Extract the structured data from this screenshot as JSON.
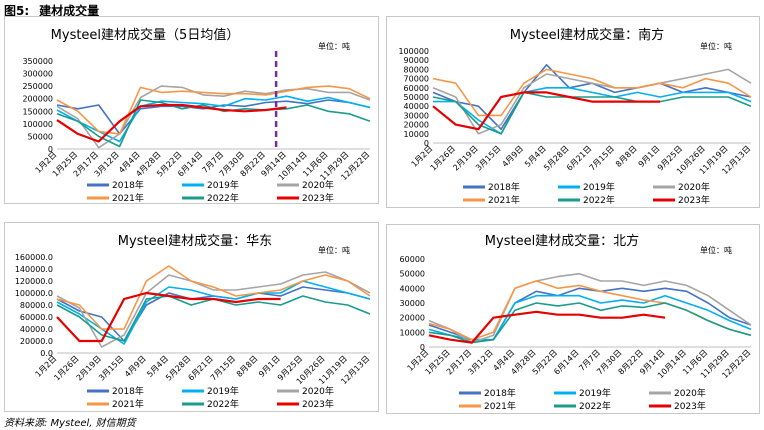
{
  "figure": {
    "number": "图5:",
    "title": "建材成交量"
  },
  "source": "资料来源: Mysteel, 财信期货",
  "series_colors": {
    "2018": "#4472c4",
    "2019": "#00b0f0",
    "2020": "#a5a5a5",
    "2021": "#f79646",
    "2022": "#1a9c8c",
    "2023": "#e60000"
  },
  "legend_order": [
    "2018",
    "2019",
    "2020",
    "2021",
    "2022",
    "2023"
  ],
  "legend_labels": [
    "2018年",
    "2019年",
    "2020年",
    "2021年",
    "2022年",
    "2023年"
  ],
  "chart_data": [
    {
      "type": "line",
      "title": "Mysteel建材成交量（5日均值）",
      "unit": "单位：吨",
      "ylim": [
        0,
        350000
      ],
      "yticks": [
        "0",
        "50000",
        "100000",
        "150000",
        "200000",
        "250000",
        "300000",
        "350000"
      ],
      "xticks": [
        "1月2日",
        "1月25日",
        "2月17日",
        "3月12日",
        "4月4日",
        "4月28日",
        "5月22日",
        "6月14日",
        "7月7日",
        "7月30日",
        "8月22日",
        "9月14日",
        "10月14日",
        "11月6日",
        "11月29日",
        "12月22日"
      ],
      "marker": {
        "x_index": 10.5,
        "style": "dashed",
        "color": "#7030a0"
      },
      "series": [
        {
          "name": "2018年",
          "values": [
            175000,
            160000,
            175000,
            60000,
            160000,
            170000,
            170000,
            160000,
            175000,
            170000,
            185000,
            190000,
            180000,
            195000,
            185000,
            165000
          ]
        },
        {
          "name": "2019年",
          "values": [
            155000,
            110000,
            70000,
            30000,
            170000,
            190000,
            185000,
            180000,
            170000,
            200000,
            195000,
            210000,
            190000,
            205000,
            185000,
            165000
          ]
        },
        {
          "name": "2020年",
          "values": [
            170000,
            120000,
            5000,
            60000,
            205000,
            250000,
            245000,
            215000,
            210000,
            230000,
            220000,
            235000,
            240000,
            225000,
            225000,
            195000
          ]
        },
        {
          "name": "2021年",
          "values": [
            195000,
            150000,
            70000,
            60000,
            245000,
            225000,
            230000,
            225000,
            220000,
            220000,
            215000,
            230000,
            245000,
            250000,
            240000,
            200000
          ]
        },
        {
          "name": "2022年",
          "values": [
            140000,
            110000,
            50000,
            10000,
            195000,
            185000,
            160000,
            175000,
            150000,
            160000,
            155000,
            160000,
            175000,
            150000,
            140000,
            110000
          ]
        },
        {
          "name": "2023年",
          "values": [
            115000,
            60000,
            30000,
            110000,
            170000,
            175000,
            175000,
            165000,
            155000,
            150000,
            155000,
            165000
          ]
        }
      ]
    },
    {
      "type": "line",
      "title": "Mysteel建材成交量：南方",
      "unit": "单位：吨",
      "ylim": [
        0,
        100000
      ],
      "yticks": [
        "0",
        "10000",
        "20000",
        "30000",
        "40000",
        "50000",
        "60000",
        "70000",
        "80000",
        "90000",
        "100000"
      ],
      "xticks": [
        "1月2日",
        "1月26日",
        "2月19日",
        "3月15日",
        "4月9日",
        "5月4日",
        "5月28日",
        "6月21日",
        "7月15日",
        "8月8日",
        "9月1日",
        "9月25日",
        "10月26日",
        "11月19日",
        "12月13日"
      ],
      "series": [
        {
          "name": "2018年",
          "values": [
            55000,
            45000,
            40000,
            15000,
            55000,
            85000,
            60000,
            65000,
            55000,
            60000,
            65000,
            55000,
            60000,
            55000,
            50000
          ]
        },
        {
          "name": "2019年",
          "values": [
            45000,
            45000,
            25000,
            10000,
            55000,
            60000,
            60000,
            55000,
            50000,
            55000,
            50000,
            55000,
            55000,
            55000,
            45000
          ]
        },
        {
          "name": "2020年",
          "values": [
            60000,
            50000,
            10000,
            20000,
            60000,
            75000,
            70000,
            65000,
            60000,
            60000,
            65000,
            70000,
            75000,
            80000,
            65000
          ]
        },
        {
          "name": "2021年",
          "values": [
            70000,
            65000,
            30000,
            30000,
            65000,
            80000,
            75000,
            70000,
            60000,
            60000,
            65000,
            60000,
            70000,
            65000,
            50000
          ]
        },
        {
          "name": "2022年",
          "values": [
            50000,
            45000,
            20000,
            10000,
            55000,
            50000,
            50000,
            50000,
            50000,
            45000,
            45000,
            50000,
            50000,
            50000,
            40000
          ]
        },
        {
          "name": "2023年",
          "values": [
            40000,
            20000,
            15000,
            50000,
            55000,
            55000,
            50000,
            45000,
            45000,
            45000,
            45000
          ]
        }
      ]
    },
    {
      "type": "line",
      "title": "Mysteel建材成交量：华东",
      "unit": "单位：吨",
      "ylim": [
        0,
        160000
      ],
      "yticks": [
        "0.0",
        "20000.0",
        "40000.0",
        "60000.0",
        "80000.0",
        "100000.0",
        "120000.0",
        "140000.0",
        "160000.0"
      ],
      "xticks": [
        "1月2日",
        "1月26日",
        "2月19日",
        "3月15日",
        "4月9日",
        "5月4日",
        "5月28日",
        "6月21日",
        "7月15日",
        "8月8日",
        "9月1日",
        "9月25日",
        "10月26日",
        "11月19日",
        "12月13日"
      ],
      "series": [
        {
          "name": "2018年",
          "values": [
            90000,
            70000,
            60000,
            20000,
            80000,
            100000,
            90000,
            95000,
            90000,
            100000,
            95000,
            110000,
            105000,
            100000,
            90000
          ]
        },
        {
          "name": "2019年",
          "values": [
            85000,
            65000,
            40000,
            15000,
            85000,
            110000,
            105000,
            95000,
            90000,
            100000,
            100000,
            120000,
            110000,
            100000,
            90000
          ]
        },
        {
          "name": "2020年",
          "values": [
            95000,
            75000,
            10000,
            30000,
            100000,
            130000,
            120000,
            105000,
            105000,
            110000,
            115000,
            130000,
            135000,
            120000,
            100000
          ]
        },
        {
          "name": "2021年",
          "values": [
            90000,
            80000,
            40000,
            40000,
            120000,
            145000,
            120000,
            110000,
            95000,
            100000,
            105000,
            120000,
            130000,
            120000,
            95000
          ]
        },
        {
          "name": "2022年",
          "values": [
            80000,
            60000,
            30000,
            20000,
            90000,
            95000,
            80000,
            90000,
            80000,
            85000,
            80000,
            95000,
            85000,
            80000,
            65000
          ]
        },
        {
          "name": "2023年",
          "values": [
            60000,
            20000,
            20000,
            90000,
            100000,
            95000,
            90000,
            90000,
            85000,
            90000,
            90000
          ]
        }
      ]
    },
    {
      "type": "line",
      "title": "Mysteel建材成交量：北方",
      "unit": "单位：吨",
      "ylim": [
        0,
        60000
      ],
      "yticks": [
        "0",
        "10000",
        "20000",
        "30000",
        "40000",
        "50000",
        "60000"
      ],
      "xticks": [
        "1月2日",
        "1月25日",
        "2月17日",
        "3月12日",
        "4月4日",
        "4月28日",
        "5月22日",
        "6月14日",
        "7月7日",
        "7月30日",
        "8月22日",
        "9月14日",
        "10月14日",
        "11月6日",
        "11月29日",
        "12月22日"
      ],
      "series": [
        {
          "name": "2018年",
          "values": [
            15000,
            10000,
            5000,
            5000,
            30000,
            38000,
            35000,
            40000,
            38000,
            40000,
            38000,
            40000,
            38000,
            30000,
            20000,
            15000
          ]
        },
        {
          "name": "2019年",
          "values": [
            12000,
            8000,
            5000,
            5000,
            30000,
            35000,
            35000,
            35000,
            30000,
            32000,
            30000,
            35000,
            30000,
            25000,
            18000,
            12000
          ]
        },
        {
          "name": "2020年",
          "values": [
            18000,
            12000,
            3000,
            8000,
            40000,
            45000,
            48000,
            50000,
            45000,
            45000,
            42000,
            45000,
            42000,
            35000,
            25000,
            15000
          ]
        },
        {
          "name": "2021年",
          "values": [
            16000,
            12000,
            5000,
            10000,
            40000,
            45000,
            40000,
            42000,
            38000,
            35000,
            32000,
            30000,
            25000,
            18000,
            12000,
            8000
          ]
        },
        {
          "name": "2022年",
          "values": [
            10000,
            8000,
            3000,
            5000,
            25000,
            30000,
            28000,
            30000,
            25000,
            28000,
            27000,
            30000,
            25000,
            18000,
            12000,
            8000
          ]
        },
        {
          "name": "2023年",
          "values": [
            8000,
            5000,
            3000,
            20000,
            22000,
            24000,
            22000,
            22000,
            20000,
            20000,
            22000,
            20000
          ]
        }
      ]
    }
  ]
}
